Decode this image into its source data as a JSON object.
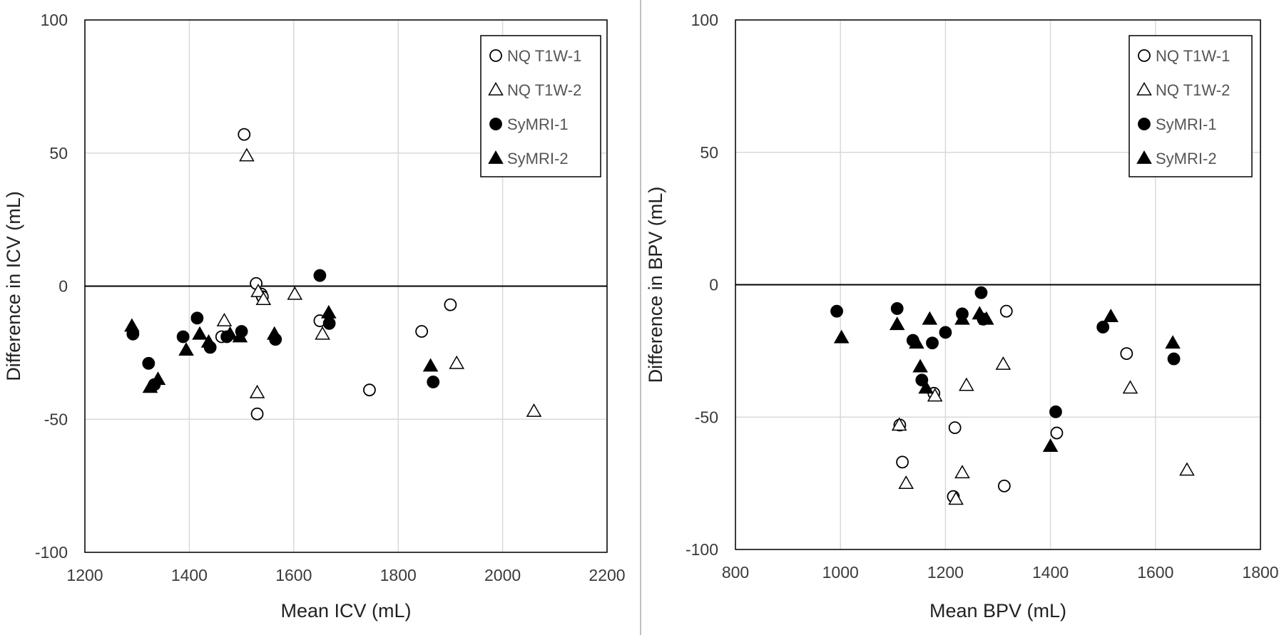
{
  "chart_data": [
    {
      "type": "scatter",
      "title": "",
      "xlabel": "Mean ICV (mL)",
      "ylabel": "Difference in ICV (mL)",
      "xlim": [
        1200,
        2200
      ],
      "ylim": [
        -100,
        100
      ],
      "xticks": [
        1200,
        1400,
        1600,
        1800,
        2000,
        2200
      ],
      "yticks": [
        -100,
        -50,
        0,
        50,
        100
      ],
      "grid": "vertical and horizontal",
      "legend_position": "top-right",
      "zero_line": 0,
      "series": [
        {
          "name": "NQ T1W-1",
          "marker": "open-circle",
          "points": [
            [
              1505,
              57
            ],
            [
              1528,
              1
            ],
            [
              1538,
              -3
            ],
            [
              1540,
              -4
            ],
            [
              1530,
              -48
            ],
            [
              1462,
              -19
            ],
            [
              1650,
              -13
            ],
            [
              1745,
              -39
            ],
            [
              1845,
              -17
            ],
            [
              1900,
              -7
            ]
          ]
        },
        {
          "name": "NQ T1W-2",
          "marker": "open-triangle",
          "points": [
            [
              1510,
              49
            ],
            [
              1532,
              -2
            ],
            [
              1542,
              -5
            ],
            [
              1530,
              -40
            ],
            [
              1467,
              -13
            ],
            [
              1602,
              -3
            ],
            [
              1655,
              -18
            ],
            [
              1912,
              -29
            ],
            [
              2060,
              -47
            ]
          ]
        },
        {
          "name": "SyMRI-1",
          "marker": "filled-circle",
          "points": [
            [
              1292,
              -18
            ],
            [
              1322,
              -29
            ],
            [
              1333,
              -37
            ],
            [
              1388,
              -19
            ],
            [
              1415,
              -12
            ],
            [
              1440,
              -23
            ],
            [
              1472,
              -19
            ],
            [
              1500,
              -17
            ],
            [
              1565,
              -20
            ],
            [
              1650,
              4
            ],
            [
              1668,
              -14
            ],
            [
              1867,
              -36
            ]
          ]
        },
        {
          "name": "SyMRI-2",
          "marker": "filled-triangle",
          "points": [
            [
              1290,
              -15
            ],
            [
              1325,
              -38
            ],
            [
              1340,
              -35
            ],
            [
              1394,
              -24
            ],
            [
              1420,
              -18
            ],
            [
              1437,
              -21
            ],
            [
              1478,
              -18
            ],
            [
              1497,
              -19
            ],
            [
              1563,
              -18
            ],
            [
              1667,
              -10
            ],
            [
              1862,
              -30
            ]
          ]
        }
      ]
    },
    {
      "type": "scatter",
      "title": "",
      "xlabel": "Mean BPV (mL)",
      "ylabel": "Difference in BPV (mL)",
      "xlim": [
        800,
        1800
      ],
      "ylim": [
        -100,
        100
      ],
      "xticks": [
        800,
        1000,
        1200,
        1400,
        1600,
        1800
      ],
      "yticks": [
        -100,
        -50,
        0,
        50,
        100
      ],
      "grid": "vertical and horizontal",
      "legend_position": "top-right",
      "zero_line": 0,
      "series": [
        {
          "name": "NQ T1W-1",
          "marker": "open-circle",
          "points": [
            [
              1113,
              -53
            ],
            [
              1118,
              -67
            ],
            [
              1178,
              -41
            ],
            [
              1218,
              -54
            ],
            [
              1215,
              -80
            ],
            [
              1312,
              -76
            ],
            [
              1316,
              -10
            ],
            [
              1412,
              -56
            ],
            [
              1545,
              -26
            ]
          ]
        },
        {
          "name": "NQ T1W-2",
          "marker": "open-triangle",
          "points": [
            [
              1112,
              -53
            ],
            [
              1125,
              -75
            ],
            [
              1180,
              -42
            ],
            [
              1220,
              -81
            ],
            [
              1232,
              -71
            ],
            [
              1240,
              -38
            ],
            [
              1310,
              -30
            ],
            [
              1552,
              -39
            ],
            [
              1660,
              -70
            ]
          ]
        },
        {
          "name": "SyMRI-1",
          "marker": "filled-circle",
          "points": [
            [
              993,
              -10
            ],
            [
              1108,
              -9
            ],
            [
              1138,
              -21
            ],
            [
              1155,
              -36
            ],
            [
              1175,
              -22
            ],
            [
              1200,
              -18
            ],
            [
              1232,
              -11
            ],
            [
              1268,
              -3
            ],
            [
              1272,
              -13
            ],
            [
              1410,
              -48
            ],
            [
              1500,
              -16
            ],
            [
              1635,
              -28
            ]
          ]
        },
        {
          "name": "SyMRI-2",
          "marker": "filled-triangle",
          "points": [
            [
              1002,
              -20
            ],
            [
              1108,
              -15
            ],
            [
              1145,
              -22
            ],
            [
              1152,
              -31
            ],
            [
              1163,
              -39
            ],
            [
              1170,
              -13
            ],
            [
              1232,
              -13
            ],
            [
              1265,
              -11
            ],
            [
              1278,
              -13
            ],
            [
              1400,
              -61
            ],
            [
              1515,
              -12
            ],
            [
              1633,
              -22
            ]
          ]
        }
      ]
    }
  ]
}
